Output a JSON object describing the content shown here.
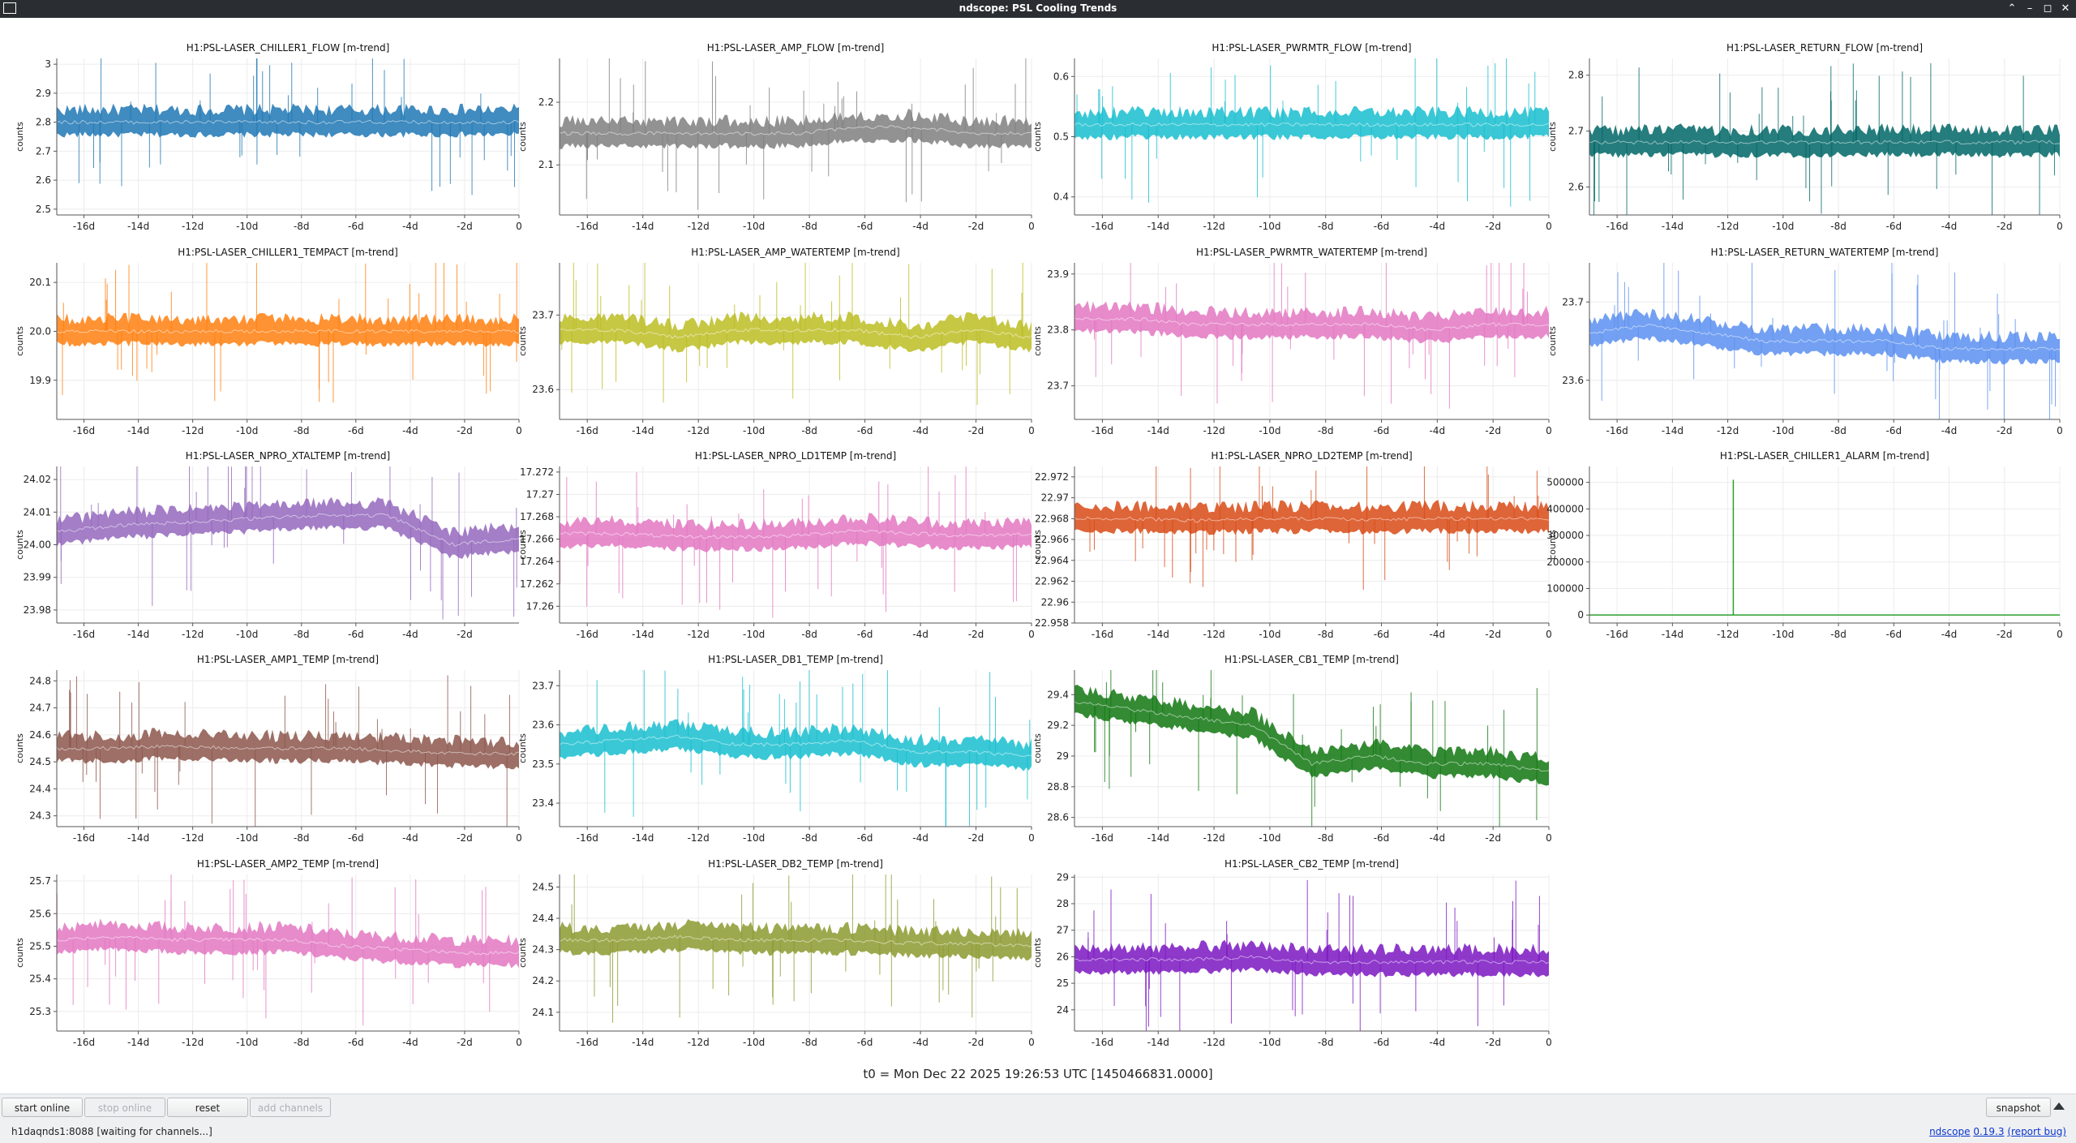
{
  "window": {
    "title": "ndscope: PSL Cooling Trends",
    "close_glyph": "✕",
    "max_glyph": "◻",
    "min_glyph": "–",
    "shade_glyph": "⌃"
  },
  "footer": {
    "t0_label": "t0 = Mon Dec 22 2025 19:26:53 UTC [1450466831.0000]"
  },
  "toolbar": {
    "start_online": "start online",
    "stop_online": "stop online",
    "reset": "reset",
    "add_channels": "add channels",
    "snapshot": "snapshot"
  },
  "status": {
    "server": "h1daqnds1:8088",
    "message": "[waiting for channels...]",
    "app_name": "ndscope",
    "version": "0.19.3",
    "report_bug": "(report bug)"
  },
  "chart_data": [
    {
      "type": "line",
      "title": "H1:PSL-LASER_CHILLER1_FLOW [m-trend]",
      "ylabel": "counts",
      "x": [
        "-16d",
        "-14d",
        "-12d",
        "-10d",
        "-8d",
        "-6d",
        "-4d",
        "-2d",
        "0"
      ],
      "xlim": [
        -17,
        0
      ],
      "yticks": [
        "2.5",
        "2.6",
        "2.7",
        "2.8",
        "2.9",
        "3"
      ],
      "ylim": [
        2.48,
        3.02
      ],
      "color": "#1f77b4",
      "series": [
        {
          "values": [
            2.8,
            2.8,
            2.8,
            2.8,
            2.8,
            2.8,
            2.8,
            2.8,
            2.8
          ]
        }
      ]
    },
    {
      "type": "line",
      "title": "H1:PSL-LASER_AMP_FLOW [m-trend]",
      "ylabel": "counts",
      "x": [
        "-16d",
        "-14d",
        "-12d",
        "-10d",
        "-8d",
        "-6d",
        "-4d",
        "-2d",
        "0"
      ],
      "xlim": [
        -17,
        0
      ],
      "yticks": [
        "2.1",
        "2.2"
      ],
      "ylim": [
        2.02,
        2.27
      ],
      "color": "#7f7f7f",
      "series": [
        {
          "values": [
            2.15,
            2.15,
            2.15,
            2.15,
            2.15,
            2.16,
            2.16,
            2.15,
            2.15
          ]
        }
      ]
    },
    {
      "type": "line",
      "title": "H1:PSL-LASER_PWRMTR_FLOW [m-trend]",
      "ylabel": "counts",
      "x": [
        "-16d",
        "-14d",
        "-12d",
        "-10d",
        "-8d",
        "-6d",
        "-4d",
        "-2d",
        "0"
      ],
      "xlim": [
        -17,
        0
      ],
      "yticks": [
        "0.4",
        "0.5",
        "0.6"
      ],
      "ylim": [
        0.37,
        0.63
      ],
      "color": "#17becf",
      "series": [
        {
          "values": [
            0.52,
            0.52,
            0.52,
            0.52,
            0.52,
            0.52,
            0.52,
            0.52,
            0.52
          ]
        }
      ]
    },
    {
      "type": "line",
      "title": "H1:PSL-LASER_RETURN_FLOW [m-trend]",
      "ylabel": "counts",
      "x": [
        "-16d",
        "-14d",
        "-12d",
        "-10d",
        "-8d",
        "-6d",
        "-4d",
        "-2d",
        "0"
      ],
      "xlim": [
        -17,
        0
      ],
      "yticks": [
        "2.6",
        "2.7",
        "2.8"
      ],
      "ylim": [
        2.55,
        2.83
      ],
      "color": "#006666",
      "series": [
        {
          "values": [
            2.68,
            2.68,
            2.68,
            2.68,
            2.68,
            2.68,
            2.68,
            2.68,
            2.68
          ]
        }
      ]
    },
    {
      "type": "line",
      "title": "H1:PSL-LASER_CHILLER1_TEMPACT [m-trend]",
      "ylabel": "counts",
      "x": [
        "-16d",
        "-14d",
        "-12d",
        "-10d",
        "-8d",
        "-6d",
        "-4d",
        "-2d",
        "0"
      ],
      "xlim": [
        -17,
        0
      ],
      "yticks": [
        "19.9",
        "20.0",
        "20.1"
      ],
      "ylim": [
        19.82,
        20.14
      ],
      "color": "#ff7f0e",
      "series": [
        {
          "values": [
            20.0,
            20.0,
            20.0,
            20.0,
            20.0,
            20.0,
            20.0,
            20.0,
            20.0
          ]
        }
      ]
    },
    {
      "type": "line",
      "title": "H1:PSL-LASER_AMP_WATERTEMP [m-trend]",
      "ylabel": "counts",
      "x": [
        "-16d",
        "-14d",
        "-12d",
        "-10d",
        "-8d",
        "-6d",
        "-4d",
        "-2d",
        "0"
      ],
      "xlim": [
        -17,
        0
      ],
      "yticks": [
        "23.6",
        "23.7"
      ],
      "ylim": [
        23.56,
        23.77
      ],
      "color": "#bcbd22",
      "series": [
        {
          "values": [
            23.68,
            23.68,
            23.67,
            23.68,
            23.68,
            23.68,
            23.67,
            23.68,
            23.67
          ]
        }
      ]
    },
    {
      "type": "line",
      "title": "H1:PSL-LASER_PWRMTR_WATERTEMP [m-trend]",
      "ylabel": "counts",
      "x": [
        "-16d",
        "-14d",
        "-12d",
        "-10d",
        "-8d",
        "-6d",
        "-4d",
        "-2d",
        "0"
      ],
      "xlim": [
        -17,
        0
      ],
      "yticks": [
        "23.7",
        "23.8",
        "23.9"
      ],
      "ylim": [
        23.64,
        23.92
      ],
      "color": "#e377c2",
      "series": [
        {
          "values": [
            23.82,
            23.82,
            23.81,
            23.81,
            23.81,
            23.81,
            23.8,
            23.81,
            23.81
          ]
        }
      ]
    },
    {
      "type": "line",
      "title": "H1:PSL-LASER_RETURN_WATERTEMP [m-trend]",
      "ylabel": "counts",
      "x": [
        "-16d",
        "-14d",
        "-12d",
        "-10d",
        "-8d",
        "-6d",
        "-4d",
        "-2d",
        "0"
      ],
      "xlim": [
        -17,
        0
      ],
      "yticks": [
        "23.6",
        "23.7"
      ],
      "ylim": [
        23.55,
        23.75
      ],
      "color": "#5b8ff0",
      "series": [
        {
          "values": [
            23.66,
            23.67,
            23.66,
            23.65,
            23.65,
            23.65,
            23.64,
            23.64,
            23.64
          ]
        }
      ]
    },
    {
      "type": "line",
      "title": "H1:PSL-LASER_NPRO_XTALTEMP [m-trend]",
      "ylabel": "counts",
      "x": [
        "-16d",
        "-14d",
        "-12d",
        "-10d",
        "-8d",
        "-6d",
        "-4d",
        "-2d"
      ],
      "xlim": [
        -17,
        0
      ],
      "yticks": [
        "23.98",
        "23.99",
        "24.00",
        "24.01",
        "24.02"
      ],
      "ylim": [
        23.976,
        24.024
      ],
      "color": "#9467bd",
      "series": [
        {
          "values": [
            24.004,
            24.006,
            24.007,
            24.008,
            24.009,
            24.009,
            24.0,
            24.002
          ]
        }
      ]
    },
    {
      "type": "line",
      "title": "H1:PSL-LASER_NPRO_LD1TEMP [m-trend]",
      "ylabel": "counts",
      "x": [
        "-16d",
        "-14d",
        "-12d",
        "-10d",
        "-8d",
        "-6d",
        "-4d",
        "-2d",
        "0"
      ],
      "xlim": [
        -17,
        0
      ],
      "yticks": [
        "17.26",
        "17.262",
        "17.264",
        "17.266",
        "17.268",
        "17.27",
        "17.272"
      ],
      "ylim": [
        17.2585,
        17.2725
      ],
      "color": "#e377c2",
      "series": [
        {
          "values": [
            17.2665,
            17.2665,
            17.2662,
            17.2662,
            17.2663,
            17.2668,
            17.2665,
            17.2663,
            17.2665
          ]
        }
      ]
    },
    {
      "type": "line",
      "title": "H1:PSL-LASER_NPRO_LD2TEMP [m-trend]",
      "ylabel": "counts",
      "x": [
        "-16d",
        "-14d",
        "-12d",
        "-10d",
        "-8d",
        "-6d",
        "-4d",
        "-2d",
        "0"
      ],
      "xlim": [
        -17,
        0
      ],
      "yticks": [
        "22.958",
        "22.96",
        "22.962",
        "22.964",
        "22.966",
        "22.968",
        "22.97",
        "22.972"
      ],
      "ylim": [
        22.958,
        22.973
      ],
      "color": "#d84a15",
      "series": [
        {
          "values": [
            22.968,
            22.968,
            22.9678,
            22.968,
            22.968,
            22.9679,
            22.968,
            22.968,
            22.968
          ]
        }
      ]
    },
    {
      "type": "line",
      "title": "H1:PSL-LASER_CHILLER1_ALARM [m-trend]",
      "ylabel": "counts",
      "x": [
        "-16d",
        "-14d",
        "-12d",
        "-10d",
        "-8d",
        "-6d",
        "-4d",
        "-2d",
        "0"
      ],
      "xlim": [
        -17,
        0
      ],
      "yticks": [
        "0",
        "100000",
        "200000",
        "300000",
        "400000",
        "500000"
      ],
      "ylim": [
        -30000,
        560000
      ],
      "color": "#2ca02c",
      "series": [
        {
          "values": [
            0,
            0,
            0,
            0,
            0,
            0,
            0,
            0,
            0
          ]
        }
      ]
    },
    {
      "type": "line",
      "title": "H1:PSL-LASER_AMP1_TEMP [m-trend]",
      "ylabel": "counts",
      "x": [
        "-16d",
        "-14d",
        "-12d",
        "-10d",
        "-8d",
        "-6d",
        "-4d",
        "-2d",
        "0"
      ],
      "xlim": [
        -17,
        0
      ],
      "yticks": [
        "24.3",
        "24.4",
        "24.5",
        "24.6",
        "24.7",
        "24.8"
      ],
      "ylim": [
        24.26,
        24.84
      ],
      "color": "#8c564b",
      "series": [
        {
          "values": [
            24.55,
            24.55,
            24.56,
            24.55,
            24.55,
            24.55,
            24.54,
            24.53,
            24.53
          ]
        }
      ]
    },
    {
      "type": "line",
      "title": "H1:PSL-LASER_DB1_TEMP [m-trend]",
      "ylabel": "counts",
      "x": [
        "-16d",
        "-14d",
        "-12d",
        "-10d",
        "-8d",
        "-6d",
        "-4d",
        "-2d",
        "0"
      ],
      "xlim": [
        -17,
        0
      ],
      "yticks": [
        "23.4",
        "23.5",
        "23.6",
        "23.7"
      ],
      "ylim": [
        23.34,
        23.74
      ],
      "color": "#17becf",
      "series": [
        {
          "values": [
            23.55,
            23.56,
            23.57,
            23.55,
            23.55,
            23.56,
            23.53,
            23.53,
            23.52
          ]
        }
      ]
    },
    {
      "type": "line",
      "title": "H1:PSL-LASER_CB1_TEMP [m-trend]",
      "ylabel": "counts",
      "x": [
        "-16d",
        "-14d",
        "-12d",
        "-10d",
        "-8d",
        "-6d",
        "-4d",
        "-2d",
        "0"
      ],
      "xlim": [
        -17,
        0
      ],
      "yticks": [
        "28.6",
        "28.8",
        "29",
        "29.2",
        "29.4"
      ],
      "ylim": [
        28.54,
        29.56
      ],
      "color": "#117711",
      "series": [
        {
          "values": [
            29.35,
            29.3,
            29.25,
            29.2,
            28.95,
            29.0,
            28.95,
            28.95,
            28.9
          ]
        }
      ]
    },
    {
      "type": "line",
      "title": "H1:PSL-LASER_AMP2_TEMP [m-trend]",
      "ylabel": "counts",
      "x": [
        "-16d",
        "-14d",
        "-12d",
        "-10d",
        "-8d",
        "-6d",
        "-4d",
        "-2d",
        "0"
      ],
      "xlim": [
        -17,
        0
      ],
      "yticks": [
        "25.3",
        "25.4",
        "25.5",
        "25.6",
        "25.7"
      ],
      "ylim": [
        25.24,
        25.72
      ],
      "color": "#e377c2",
      "series": [
        {
          "values": [
            25.52,
            25.53,
            25.52,
            25.52,
            25.52,
            25.5,
            25.49,
            25.48,
            25.48
          ]
        }
      ]
    },
    {
      "type": "line",
      "title": "H1:PSL-LASER_DB2_TEMP [m-trend]",
      "ylabel": "counts",
      "x": [
        "-16d",
        "-14d",
        "-12d",
        "-10d",
        "-8d",
        "-6d",
        "-4d",
        "-2d",
        "0"
      ],
      "xlim": [
        -17,
        0
      ],
      "yticks": [
        "24.1",
        "24.2",
        "24.3",
        "24.4",
        "24.5"
      ],
      "ylim": [
        24.04,
        24.54
      ],
      "color": "#8c9a2f",
      "series": [
        {
          "values": [
            24.33,
            24.33,
            24.34,
            24.33,
            24.33,
            24.33,
            24.32,
            24.32,
            24.31
          ]
        }
      ]
    },
    {
      "type": "line",
      "title": "H1:PSL-LASER_CB2_TEMP [m-trend]",
      "ylabel": "counts",
      "x": [
        "-16d",
        "-14d",
        "-12d",
        "-10d",
        "-8d",
        "-6d",
        "-4d",
        "-2d",
        "0"
      ],
      "xlim": [
        -17,
        0
      ],
      "yticks": [
        "24",
        "25",
        "26",
        "27",
        "28",
        "29"
      ],
      "ylim": [
        23.2,
        29.1
      ],
      "color": "#7b16c2",
      "series": [
        {
          "values": [
            25.9,
            25.9,
            25.9,
            26.0,
            25.8,
            25.8,
            25.8,
            25.8,
            25.8
          ]
        }
      ]
    }
  ]
}
